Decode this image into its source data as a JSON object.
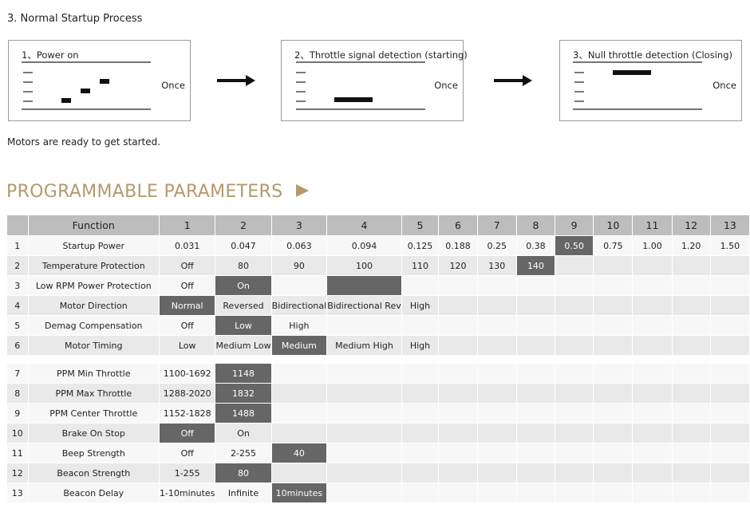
{
  "startup": {
    "title": "3. Normal Startup Process",
    "steps": [
      {
        "label": "1、Power on",
        "note": "Once"
      },
      {
        "label": "2、Throttle signal detection (starting)",
        "note": "Once"
      },
      {
        "label": "3、Null throttle detection (Closing)",
        "note": "Once"
      }
    ],
    "footer": "Motors are ready to get started."
  },
  "params": {
    "title": "PROGRAMMABLE PARAMETERS",
    "table": {
      "header": [
        "Function",
        "1",
        "2",
        "3",
        "4",
        "5",
        "6",
        "7",
        "8",
        "9",
        "10",
        "11",
        "12",
        "13"
      ],
      "groups": [
        {
          "rows": [
            {
              "num": "1",
              "function": "Startup Power",
              "values": [
                "0.031",
                "0.047",
                "0.063",
                "0.094",
                "0.125",
                "0.188",
                "0.25",
                "0.38",
                "0.50",
                "0.75",
                "1.00",
                "1.20",
                "1.50"
              ],
              "highlight": [
                9
              ]
            },
            {
              "num": "2",
              "function": "Temperature Protection",
              "values": [
                "Off",
                "80",
                "90",
                "100",
                "110",
                "120",
                "130",
                "140"
              ],
              "highlight": [
                8
              ]
            },
            {
              "num": "3",
              "function": "Low RPM Power Protection",
              "values": [
                "Off",
                "On",
                null,
                null
              ],
              "highlight": [
                2,
                4
              ]
            },
            {
              "num": "4",
              "function": "Motor Direction",
              "values": [
                "Normal",
                "Reversed",
                "Bidirectional",
                "Bidirectional Rev",
                "High"
              ],
              "highlight": [
                1
              ]
            },
            {
              "num": "5",
              "function": "Demag Compensation",
              "values": [
                "Off",
                "Low",
                "High"
              ],
              "highlight": [
                2
              ]
            },
            {
              "num": "6",
              "function": "Motor Timing",
              "values": [
                "Low",
                "Medium Low",
                "Medium",
                "Medium High",
                "High"
              ],
              "highlight": [
                3
              ]
            }
          ]
        },
        {
          "rows": [
            {
              "num": "7",
              "function": "PPM Min Throttle",
              "values": [
                "1100-1692",
                "1148"
              ],
              "highlight": [
                2
              ]
            },
            {
              "num": "8",
              "function": "PPM Max Throttle",
              "values": [
                "1288-2020",
                "1832"
              ],
              "highlight": [
                2
              ]
            },
            {
              "num": "9",
              "function": "PPM Center Throttle",
              "values": [
                "1152-1828",
                "1488"
              ],
              "highlight": [
                2
              ]
            },
            {
              "num": "10",
              "function": "Brake On Stop",
              "values": [
                "Off",
                "On"
              ],
              "highlight": [
                1
              ]
            },
            {
              "num": "11",
              "function": "Beep Strength",
              "values": [
                "Off",
                "2-255",
                "40"
              ],
              "highlight": [
                3
              ]
            },
            {
              "num": "12",
              "function": "Beacon Strength",
              "values": [
                "1-255",
                "80"
              ],
              "highlight": [
                2
              ]
            },
            {
              "num": "13",
              "function": "Beacon Delay",
              "values": [
                "1-10minutes",
                "Infinite",
                "10minutes"
              ],
              "highlight": [
                3
              ]
            }
          ]
        }
      ]
    }
  }
}
